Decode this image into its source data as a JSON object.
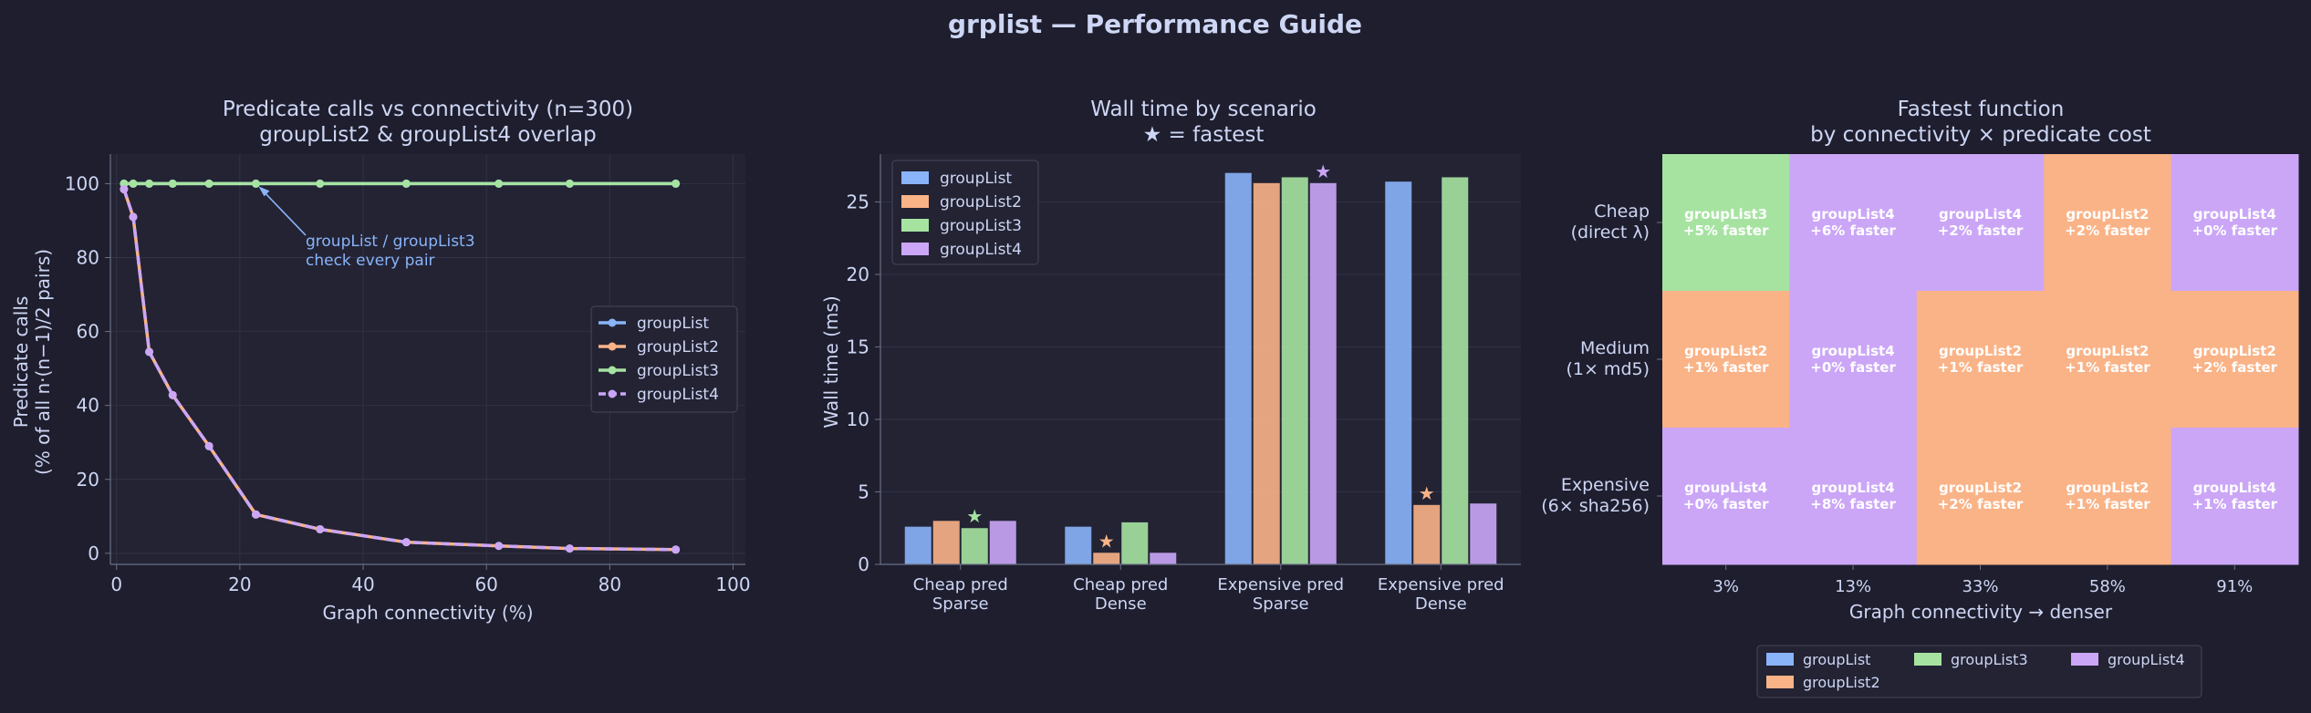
{
  "figure_title": "grplist — Performance Guide",
  "colors": {
    "background": "#1e1e2e",
    "panel": "#232334",
    "text": "#cdd6f4",
    "groupList": "#89b4fa",
    "groupList2": "#fab387",
    "groupList3": "#a6e3a1",
    "groupList4": "#cba6f7"
  },
  "chart_data": [
    {
      "type": "line",
      "title": "Predicate calls vs connectivity  (n=300)",
      "subtitle": "groupList2 & groupList4 overlap",
      "xlabel": "Graph connectivity (%)",
      "ylabel_line1": "Predicate calls",
      "ylabel_line2": "(% of all n·(n−1)/2 pairs)",
      "xlim": [
        -1,
        102
      ],
      "ylim": [
        -3,
        108
      ],
      "xticks": [
        0,
        20,
        40,
        60,
        80,
        100
      ],
      "yticks": [
        0,
        20,
        40,
        60,
        80,
        100
      ],
      "grid": true,
      "legend": "center-right",
      "annotation_line1": "groupList / groupList3",
      "annotation_line2": "check every pair",
      "x": [
        1.2,
        2.7,
        5.3,
        9.1,
        15,
        22.6,
        33,
        47,
        62,
        73.5,
        90.7
      ],
      "series": [
        {
          "name": "groupList",
          "color_key": "groupList",
          "dashed": false,
          "values": [
            100,
            100,
            100,
            100,
            100,
            100,
            100,
            100,
            100,
            100,
            100
          ]
        },
        {
          "name": "groupList2",
          "color_key": "groupList2",
          "dashed": false,
          "values": [
            98.5,
            91,
            54.5,
            42.8,
            29,
            10.5,
            6.5,
            3,
            2,
            1.3,
            1
          ]
        },
        {
          "name": "groupList3",
          "color_key": "groupList3",
          "dashed": false,
          "values": [
            100,
            100,
            100,
            100,
            100,
            100,
            100,
            100,
            100,
            100,
            100
          ]
        },
        {
          "name": "groupList4",
          "color_key": "groupList4",
          "dashed": true,
          "values": [
            98.5,
            91,
            54.5,
            42.8,
            29,
            10.5,
            6.5,
            3,
            2,
            1.3,
            1
          ]
        }
      ]
    },
    {
      "type": "bar",
      "title": "Wall time by scenario",
      "subtitle": "★ = fastest",
      "xlabel": "",
      "ylabel": "Wall time (ms)",
      "ylim": [
        0,
        28.3
      ],
      "yticks": [
        0,
        5,
        10,
        15,
        20,
        25
      ],
      "grid": true,
      "legend": "top-left",
      "categories": [
        [
          "Cheap pred",
          "Sparse"
        ],
        [
          "Cheap pred",
          "Dense"
        ],
        [
          "Expensive pred",
          "Sparse"
        ],
        [
          "Expensive pred",
          "Dense"
        ]
      ],
      "series": [
        {
          "name": "groupList",
          "color_key": "groupList",
          "values": [
            2.6,
            2.6,
            27.0,
            26.4
          ]
        },
        {
          "name": "groupList2",
          "color_key": "groupList2",
          "values": [
            3.0,
            0.8,
            26.3,
            4.1
          ]
        },
        {
          "name": "groupList3",
          "color_key": "groupList3",
          "values": [
            2.5,
            2.9,
            26.7,
            26.7
          ]
        },
        {
          "name": "groupList4",
          "color_key": "groupList4",
          "values": [
            3.0,
            0.8,
            26.3,
            4.2
          ]
        }
      ],
      "fastest": [
        {
          "category": 0,
          "series": 2,
          "marker": "★"
        },
        {
          "category": 1,
          "series": 1,
          "marker": "★"
        },
        {
          "category": 2,
          "series": 3,
          "marker": "★"
        },
        {
          "category": 3,
          "series": 1,
          "marker": "★"
        }
      ]
    },
    {
      "type": "heatmap",
      "title": "Fastest function",
      "subtitle": "by connectivity × predicate cost",
      "xlabel": "Graph connectivity  →  denser",
      "x_categories": [
        "3%",
        "13%",
        "33%",
        "58%",
        "91%"
      ],
      "y_categories": [
        [
          "Cheap",
          "(direct λ)"
        ],
        [
          "Medium",
          "(1× md5)"
        ],
        [
          "Expensive",
          "(6× sha256)"
        ]
      ],
      "legend": "bottom-center",
      "legend_items": [
        "groupList",
        "groupList2",
        "groupList3",
        "groupList4"
      ],
      "cells": [
        [
          {
            "winner": "groupList3",
            "gain": "+5% faster"
          },
          {
            "winner": "groupList4",
            "gain": "+6% faster"
          },
          {
            "winner": "groupList4",
            "gain": "+2% faster"
          },
          {
            "winner": "groupList2",
            "gain": "+2% faster"
          },
          {
            "winner": "groupList4",
            "gain": "+0% faster"
          }
        ],
        [
          {
            "winner": "groupList2",
            "gain": "+1% faster"
          },
          {
            "winner": "groupList4",
            "gain": "+0% faster"
          },
          {
            "winner": "groupList2",
            "gain": "+1% faster"
          },
          {
            "winner": "groupList2",
            "gain": "+1% faster"
          },
          {
            "winner": "groupList2",
            "gain": "+2% faster"
          }
        ],
        [
          {
            "winner": "groupList4",
            "gain": "+0% faster"
          },
          {
            "winner": "groupList4",
            "gain": "+8% faster"
          },
          {
            "winner": "groupList2",
            "gain": "+2% faster"
          },
          {
            "winner": "groupList2",
            "gain": "+1% faster"
          },
          {
            "winner": "groupList4",
            "gain": "+1% faster"
          }
        ]
      ]
    }
  ]
}
